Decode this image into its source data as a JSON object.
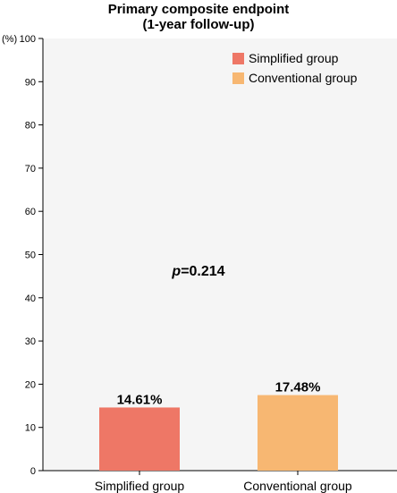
{
  "chart_data": {
    "type": "bar",
    "title": "Primary composite endpoint",
    "subtitle": "(1-year follow-up)",
    "ylabel": "(%)",
    "ylim": [
      0,
      100
    ],
    "yticks": [
      "0",
      "10",
      "20",
      "30",
      "40",
      "50",
      "60",
      "70",
      "80",
      "90",
      "100"
    ],
    "categories": [
      "Simplified group",
      "Conventional group"
    ],
    "values": [
      14.61,
      17.48
    ],
    "data_labels": [
      "14.61%",
      "17.48%"
    ],
    "colors": [
      "#ee7766",
      "#f7b772"
    ],
    "legend": {
      "position": "top-right",
      "entries": [
        "Simplified group",
        "Conventional group"
      ]
    },
    "annotation": {
      "p_symbol": "p",
      "p_value": "=0.214"
    },
    "background": "#f5f5f5",
    "grid": false
  }
}
